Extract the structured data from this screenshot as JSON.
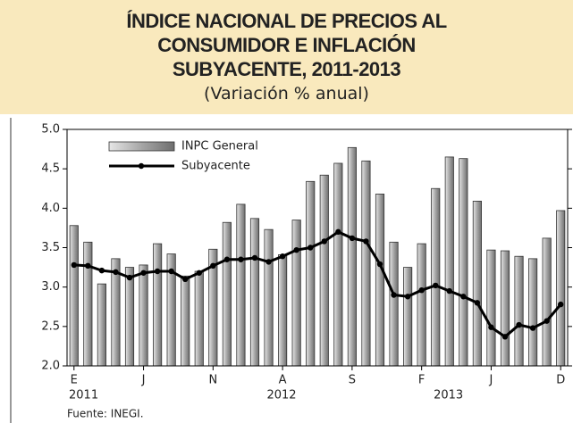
{
  "chart_data": {
    "type": "bar",
    "title_lines": [
      "ÍNDICE NACIONAL DE PRECIOS AL",
      "CONSUMIDOR E INFLACIÓN",
      "SUBYACENTE, 2011-2013"
    ],
    "subtitle": "(Variación % anual)",
    "source": "Fuente: INEGI.",
    "categories": [
      "E",
      null,
      null,
      null,
      null,
      "J",
      null,
      null,
      null,
      null,
      "N",
      null,
      null,
      null,
      null,
      "A",
      null,
      null,
      null,
      null,
      "S",
      null,
      null,
      null,
      null,
      "F",
      null,
      null,
      null,
      null,
      "J",
      null,
      null,
      null,
      null,
      "D"
    ],
    "category_groups": [
      {
        "name": "2011",
        "start": 0,
        "end": 11
      },
      {
        "name": "2012",
        "start": 12,
        "end": 23
      },
      {
        "name": "2013",
        "start": 24,
        "end": 35
      }
    ],
    "series": [
      {
        "name": "INPC General",
        "type": "bar",
        "color": "#a6a6a6",
        "values": [
          3.78,
          3.57,
          3.04,
          3.36,
          3.25,
          3.28,
          3.55,
          3.42,
          3.14,
          3.2,
          3.48,
          3.82,
          4.05,
          3.87,
          3.73,
          3.41,
          3.85,
          4.34,
          4.42,
          4.57,
          4.77,
          4.6,
          4.18,
          3.57,
          3.25,
          3.55,
          4.25,
          4.65,
          4.63,
          4.09,
          3.47,
          3.46,
          3.39,
          3.36,
          3.62,
          3.97
        ]
      },
      {
        "name": "Subyacente",
        "type": "line",
        "color": "#000000",
        "values": [
          3.28,
          3.27,
          3.21,
          3.19,
          3.12,
          3.18,
          3.2,
          3.2,
          3.1,
          3.18,
          3.27,
          3.35,
          3.35,
          3.37,
          3.32,
          3.39,
          3.47,
          3.5,
          3.58,
          3.7,
          3.62,
          3.58,
          3.29,
          2.9,
          2.88,
          2.96,
          3.02,
          2.95,
          2.88,
          2.8,
          2.49,
          2.37,
          2.52,
          2.48,
          2.57,
          2.78
        ]
      }
    ],
    "ylim": [
      2,
      5
    ],
    "yticks": [
      {
        "value": 2,
        "label": "2.0"
      },
      2.5,
      {
        "value": 3,
        "label": "3.0"
      },
      3.5,
      {
        "value": 4,
        "label": "4.0"
      },
      4.5,
      {
        "value": 5,
        "label": "5.0"
      }
    ],
    "grid": false,
    "legend": "upper left"
  }
}
